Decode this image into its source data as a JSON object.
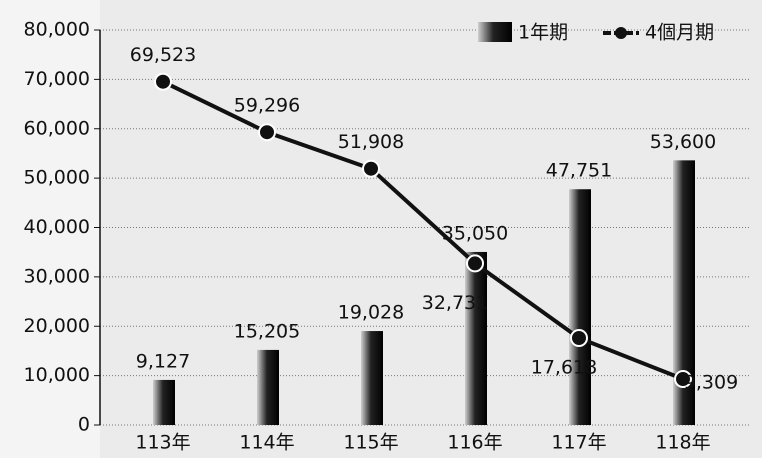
{
  "chart_data": {
    "type": "bar",
    "categories": [
      "113年",
      "114年",
      "115年",
      "116年",
      "117年",
      "118年"
    ],
    "series": [
      {
        "name": "1年期",
        "type": "bar",
        "color": "#111111",
        "values": [
          9127,
          15205,
          19028,
          35050,
          47751,
          53600
        ],
        "value_labels": [
          "9,127",
          "15,205",
          "19,028",
          "35,050",
          "47,751",
          "53,600"
        ]
      },
      {
        "name": "4個月期",
        "type": "line",
        "color": "#111111",
        "values": [
          69523,
          59296,
          51908,
          32731,
          17618,
          9309
        ],
        "value_labels": [
          "69,523",
          "59,296",
          "51,908",
          "32,731",
          "17,618",
          "9,309"
        ]
      }
    ],
    "ylim": [
      0,
      80000
    ],
    "yticks": [
      {
        "value": 0,
        "label": "0"
      },
      {
        "value": 10000,
        "label": "10,000"
      },
      {
        "value": 20000,
        "label": "20,000"
      },
      {
        "value": 30000,
        "label": "30,000"
      },
      {
        "value": 40000,
        "label": "40,000"
      },
      {
        "value": 50000,
        "label": "50,000"
      },
      {
        "value": 60000,
        "label": "60,000"
      },
      {
        "value": 70000,
        "label": "70,000"
      },
      {
        "value": 80000,
        "label": "80,000"
      }
    ],
    "grid": true,
    "legend": "top-right"
  }
}
